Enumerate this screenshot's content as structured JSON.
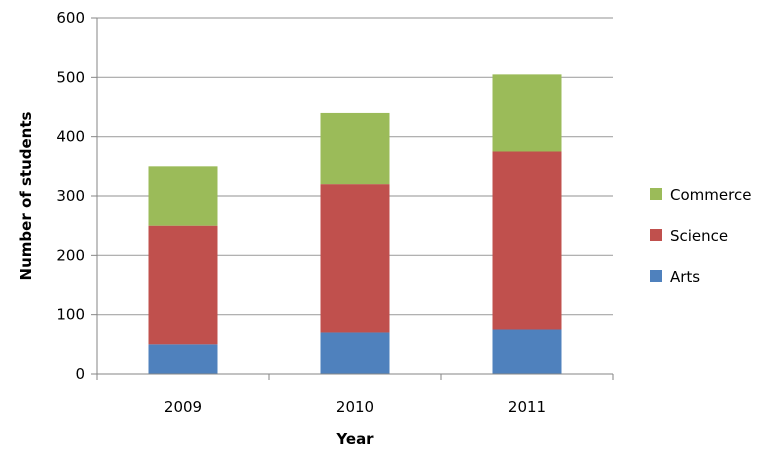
{
  "chart_data": {
    "type": "bar",
    "stacked": true,
    "title": "",
    "xlabel": "Year",
    "ylabel": "Number of students",
    "ylim": [
      0,
      600
    ],
    "yticks": [
      0,
      100,
      200,
      300,
      400,
      500,
      600
    ],
    "grid": true,
    "legend_position": "right",
    "categories": [
      "2009",
      "2010",
      "2011"
    ],
    "series": [
      {
        "name": "Arts",
        "color": "#4F81BD",
        "values": [
          50,
          70,
          75
        ]
      },
      {
        "name": "Science",
        "color": "#C0504D",
        "values": [
          200,
          250,
          300
        ]
      },
      {
        "name": "Commerce",
        "color": "#9BBB59",
        "values": [
          100,
          120,
          130
        ]
      }
    ]
  }
}
